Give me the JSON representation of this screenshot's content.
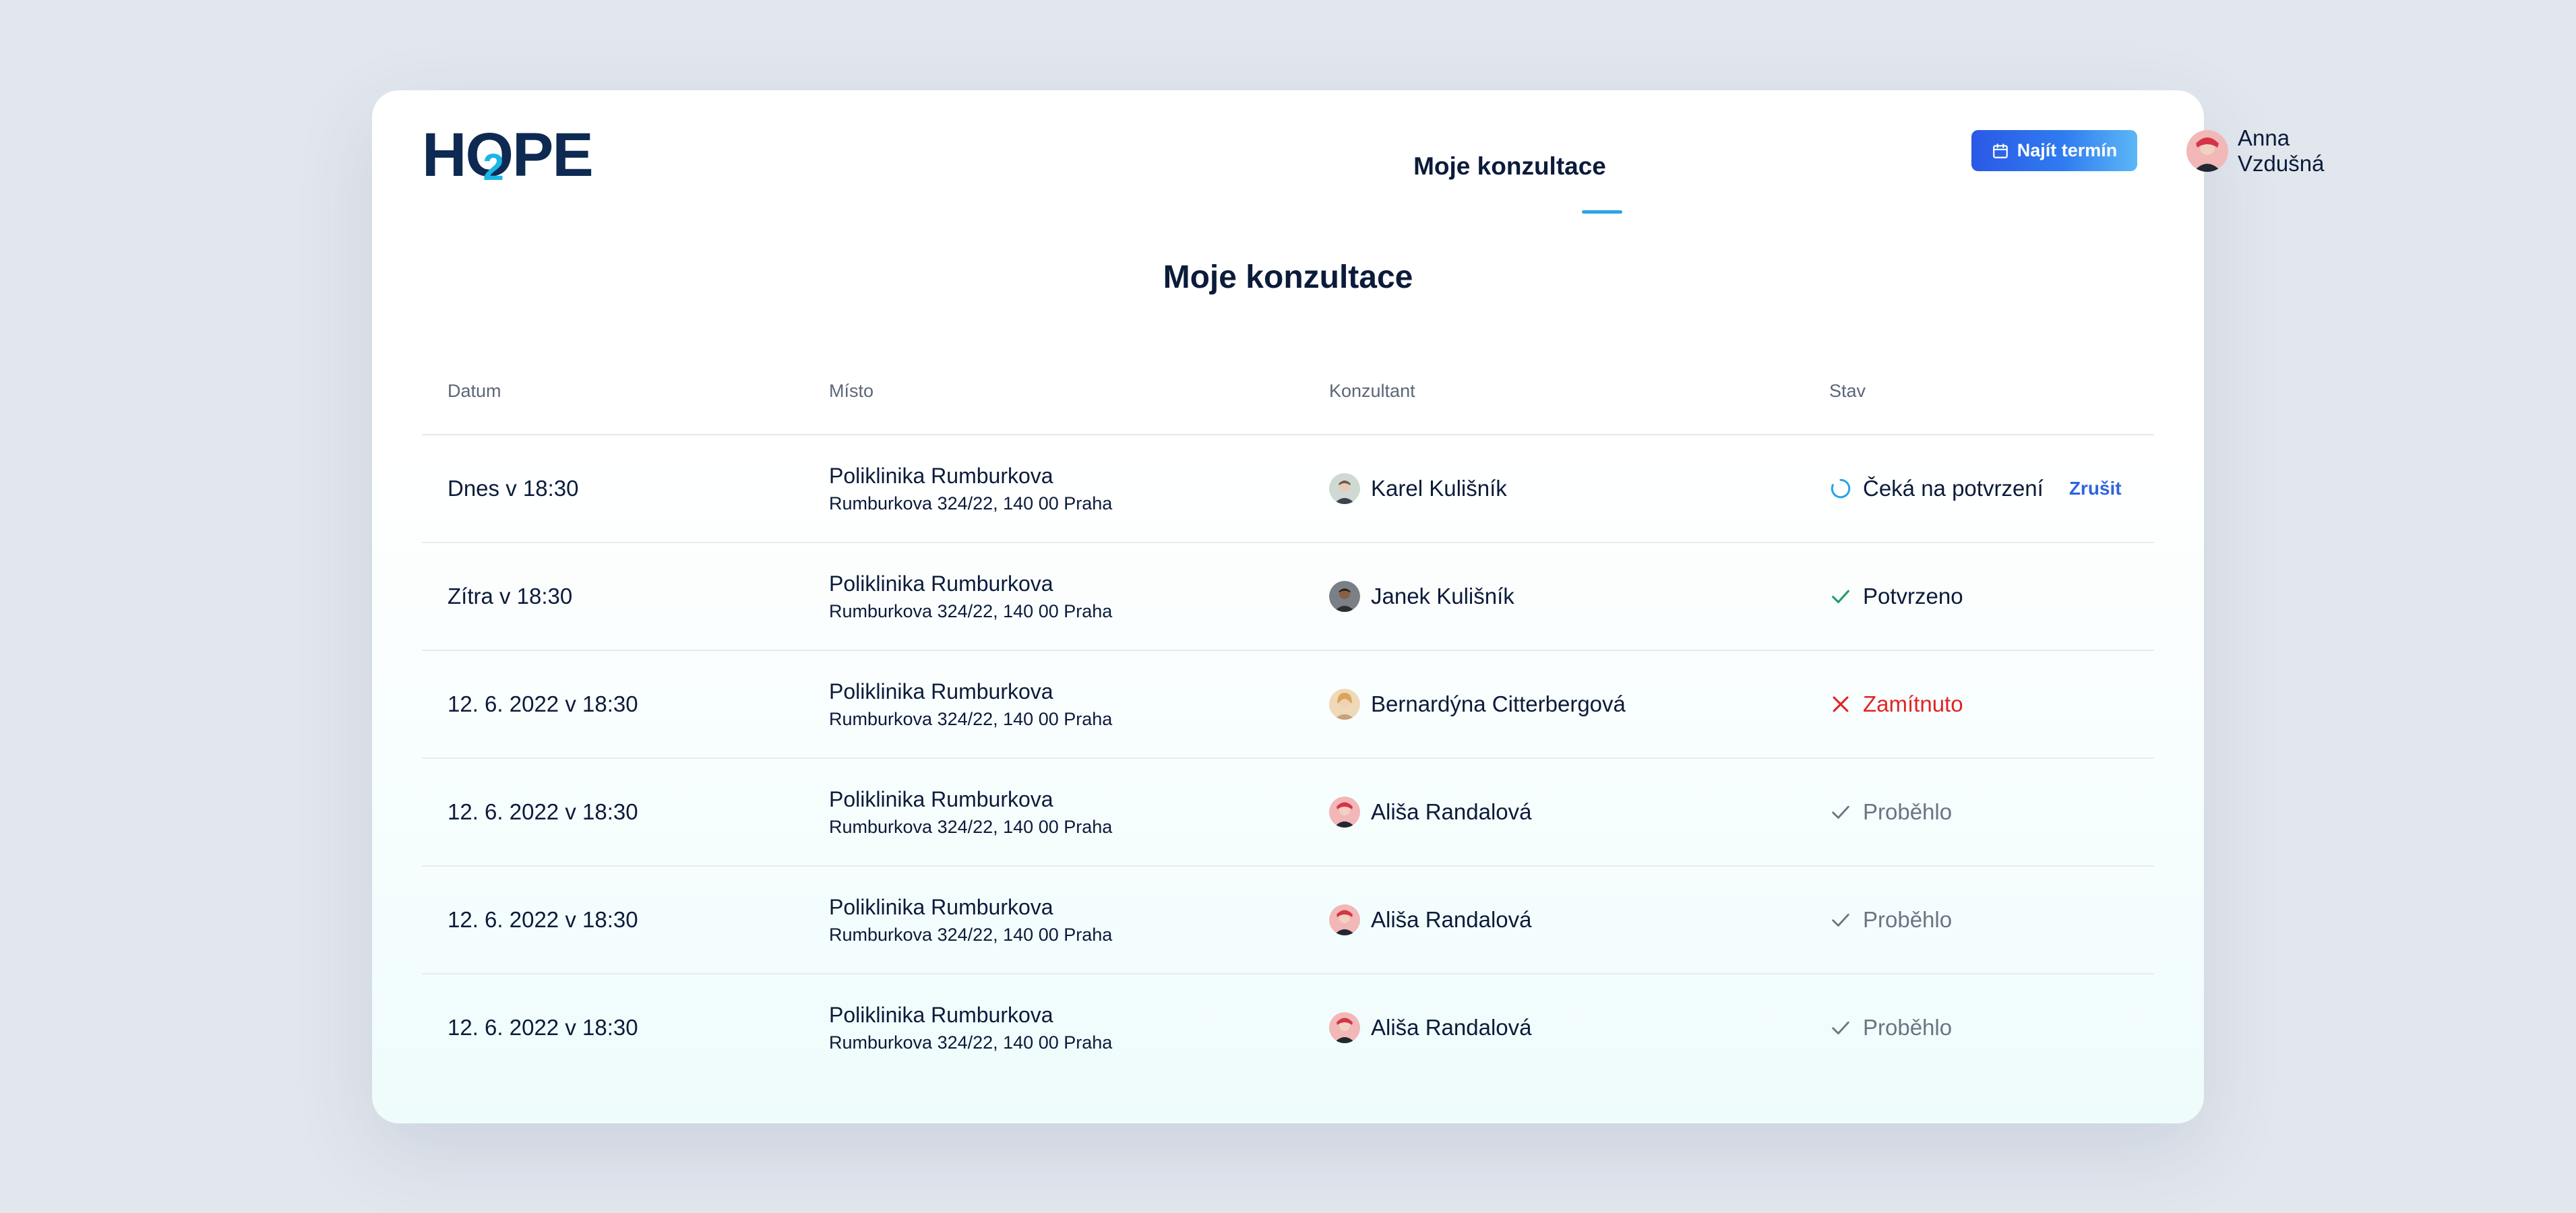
{
  "header": {
    "logo_text": "H",
    "logo_text_2": "PE",
    "logo_two": "2",
    "nav_link": "Moje konzultace",
    "find_button": "Najít termín",
    "user_name": "Anna Vzdušná"
  },
  "page_title": "Moje konzultace",
  "table": {
    "columns": [
      "Datum",
      "Místo",
      "Konzultant",
      "Stav"
    ],
    "cancel_label": "Zrušit",
    "rows": [
      {
        "date": "Dnes v 18:30",
        "place": "Poliklinika Rumburkova",
        "address": "Rumburkova 324/22, 140 00 Praha",
        "consultant": "Karel Kulišník",
        "status": "Čeká na potvrzení",
        "status_type": "pending"
      },
      {
        "date": "Zítra v 18:30",
        "place": "Poliklinika Rumburkova",
        "address": "Rumburkova 324/22, 140 00 Praha",
        "consultant": "Janek Kulišník",
        "status": "Potvrzeno",
        "status_type": "confirmed"
      },
      {
        "date": "12. 6. 2022 v 18:30",
        "place": "Poliklinika Rumburkova",
        "address": "Rumburkova 324/22, 140 00 Praha",
        "consultant": "Bernardýna Citterbergová",
        "status": "Zamítnuto",
        "status_type": "rejected"
      },
      {
        "date": "12. 6. 2022 v 18:30",
        "place": "Poliklinika Rumburkova",
        "address": "Rumburkova 324/22, 140 00 Praha",
        "consultant": "Ališa Randalová",
        "status": "Proběhlo",
        "status_type": "done"
      },
      {
        "date": "12. 6. 2022 v 18:30",
        "place": "Poliklinika Rumburkova",
        "address": "Rumburkova 324/22, 140 00 Praha",
        "consultant": "Ališa Randalová",
        "status": "Proběhlo",
        "status_type": "done"
      },
      {
        "date": "12. 6. 2022 v 18:30",
        "place": "Poliklinika Rumburkova",
        "address": "Rumburkova 324/22, 140 00 Praha",
        "consultant": "Ališa Randalová",
        "status": "Proběhlo",
        "status_type": "done"
      }
    ]
  },
  "colors": {
    "accent": "#2f63e0",
    "confirmed": "#1f9d68",
    "rejected": "#e02424",
    "done": "#6b7483",
    "pending": "#2aa5e6"
  },
  "icons": {
    "find_button": "calendar-icon",
    "pending": "spinner-icon",
    "confirmed": "check-icon",
    "rejected": "close-icon",
    "done": "check-icon"
  }
}
